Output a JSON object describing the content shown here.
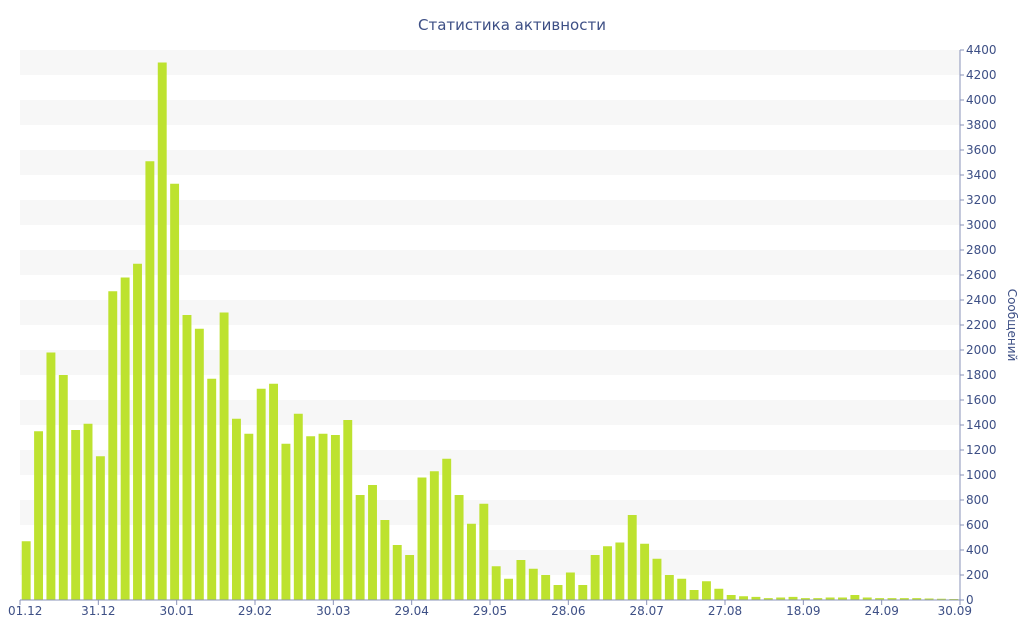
{
  "chart_data": {
    "type": "bar",
    "title": "Статистика активности",
    "xlabel": "",
    "ylabel": "Сообщений",
    "y_axis_side": "right",
    "ylim": [
      0,
      4400
    ],
    "y_ticks": [
      0,
      200,
      400,
      600,
      800,
      1000,
      1200,
      1400,
      1600,
      1800,
      2000,
      2200,
      2400,
      2600,
      2800,
      3000,
      3200,
      3400,
      3600,
      3800,
      4000,
      4200,
      4400
    ],
    "x_tick_labels": [
      "01.12",
      "31.12",
      "30.01",
      "29.02",
      "30.03",
      "29.04",
      "29.05",
      "28.06",
      "28.07",
      "27.08",
      "18.09",
      "24.09",
      "30.09"
    ],
    "grid": "alternating horizontal bands",
    "colors": {
      "bar": "#bde22f",
      "text": "#3d4f85",
      "band": "#f7f7f7",
      "axis": "#8a93b8"
    },
    "values": [
      470,
      1350,
      1980,
      1800,
      1360,
      1410,
      1150,
      2470,
      2580,
      2690,
      3510,
      4300,
      3330,
      2280,
      2170,
      1770,
      2300,
      1450,
      1330,
      1690,
      1730,
      1250,
      1490,
      1310,
      1330,
      1320,
      1440,
      840,
      920,
      640,
      440,
      360,
      980,
      1030,
      1130,
      840,
      610,
      770,
      270,
      170,
      320,
      250,
      200,
      120,
      220,
      120,
      360,
      430,
      460,
      680,
      450,
      330,
      200,
      170,
      80,
      150,
      90,
      40,
      30,
      25,
      15,
      20,
      25,
      15,
      15,
      20,
      20,
      40,
      20,
      15,
      15,
      15,
      15,
      12,
      10,
      8
    ]
  }
}
